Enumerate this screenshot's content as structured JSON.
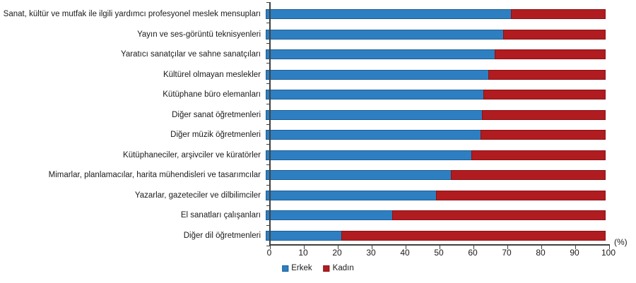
{
  "chart": {
    "percent_label": "(%)",
    "legend": [
      {
        "label": "Erkek",
        "color": "#2e7fc1",
        "border": "#1c5e95"
      },
      {
        "label": "Kadın",
        "color": "#b11c20",
        "border": "#8a1114"
      }
    ]
  },
  "chart_data": {
    "type": "bar",
    "orientation": "horizontal",
    "stacked": true,
    "unit": "%",
    "title": "",
    "xlabel": "(%)",
    "ylabel": "",
    "xlim": [
      0,
      100
    ],
    "xticks": [
      0,
      10,
      20,
      30,
      40,
      50,
      60,
      70,
      80,
      90,
      100
    ],
    "grid": false,
    "legend_position": "bottom-center",
    "categories": [
      "Sanat, kültür ve mutfak ile ilgili yardımcı profesyonel meslek mensupları",
      "Yayın ve ses-görüntü teknisyenleri",
      "Yaratıcı sanatçılar ve sahne sanatçıları",
      "Kültürel olmayan meslekler",
      "Kütüphane büro elemanları",
      "Diğer sanat öğretmenleri",
      "Diğer müzik öğretmenleri",
      "Kütüphaneciler, arşivciler ve küratörler",
      "Mimarlar, planlamacılar, harita mühendisleri ve tasarımcılar",
      "Yazarlar, gazeteciler ve dilbilimciler",
      "El sanatları çalışanları",
      "Diğer dil öğretmenleri"
    ],
    "series": [
      {
        "name": "Erkek",
        "color": "#2e7fc1",
        "values": [
          72.2,
          69.8,
          67.3,
          65.5,
          64.1,
          63.7,
          63.3,
          60.6,
          54.4,
          50.2,
          37.3,
          22.2
        ]
      },
      {
        "name": "Kadın",
        "color": "#b11c20",
        "values": [
          27.8,
          30.2,
          32.7,
          34.5,
          35.9,
          36.3,
          36.7,
          39.4,
          45.6,
          49.8,
          62.7,
          77.8
        ]
      }
    ]
  }
}
